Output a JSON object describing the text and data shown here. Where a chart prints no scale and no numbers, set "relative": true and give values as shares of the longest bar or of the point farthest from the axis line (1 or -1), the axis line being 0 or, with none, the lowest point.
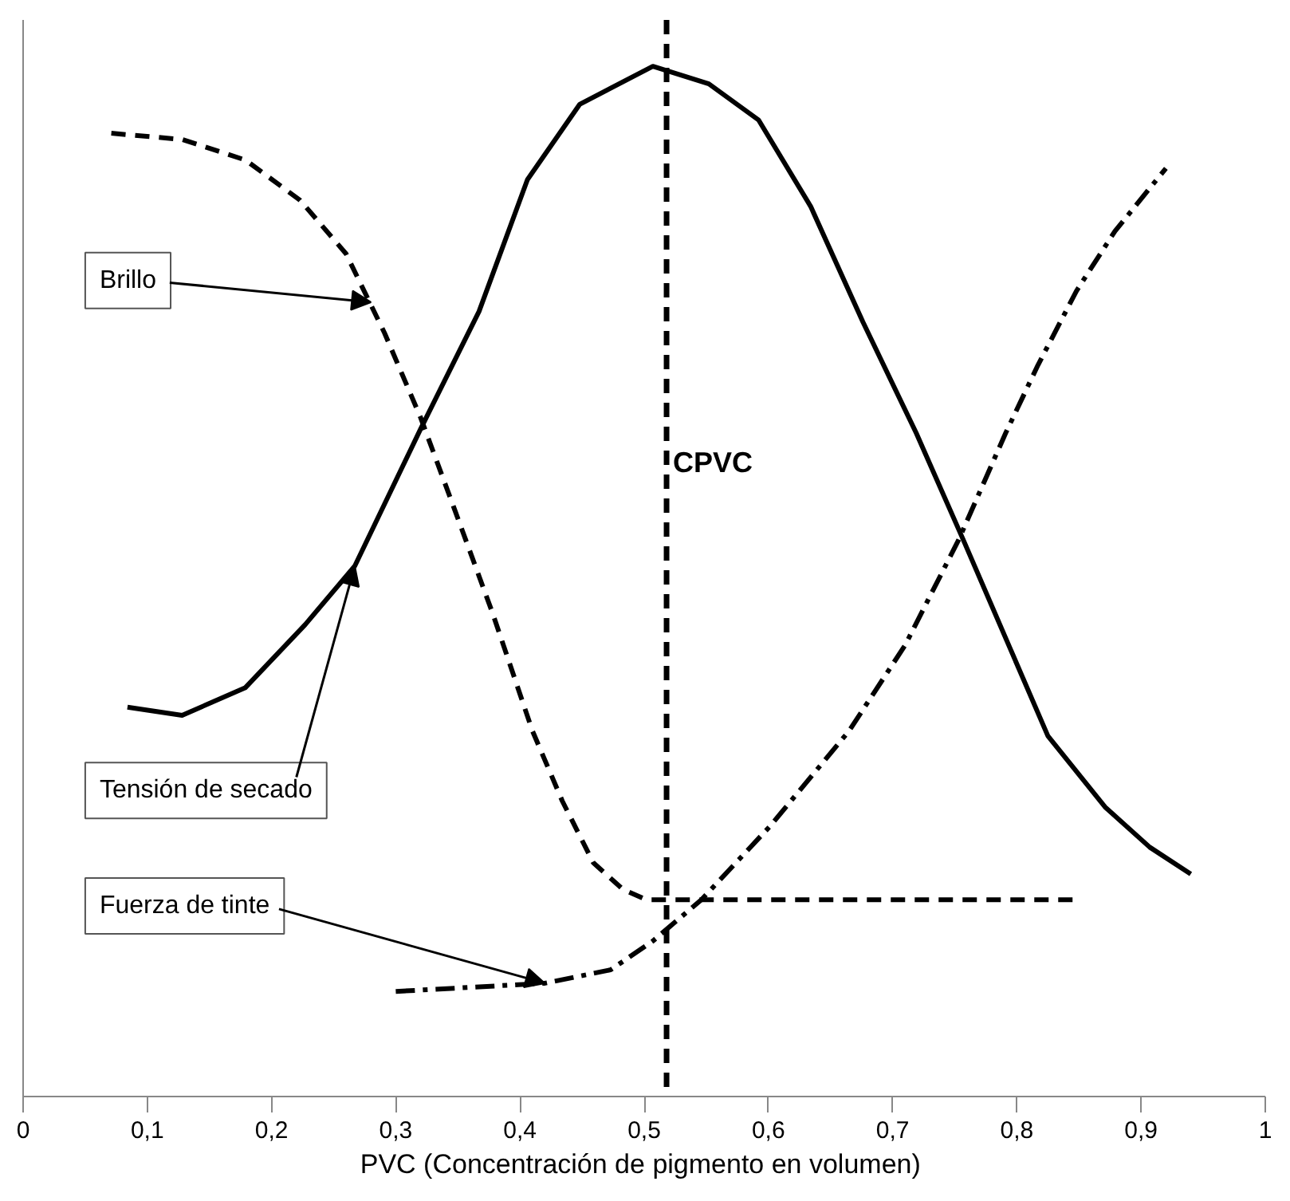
{
  "chart_data": {
    "type": "line",
    "relative": true,
    "xlabel": "PVC  (Concentración de pigmento en volumen)",
    "xlim": [
      0,
      1
    ],
    "xticks": [
      0,
      {
        "value": 0.1,
        "label": "0,1"
      },
      {
        "value": 0.2,
        "label": "0,2"
      },
      {
        "value": 0.3,
        "label": "0,3"
      },
      {
        "value": 0.4,
        "label": "0,4"
      },
      {
        "value": 0.5,
        "label": "0,5"
      },
      {
        "value": 0.6,
        "label": "0,6"
      },
      {
        "value": 0.7,
        "label": "0,7"
      },
      {
        "value": 0.8,
        "label": "0,8"
      },
      {
        "value": 0.9,
        "label": "0,9"
      },
      1
    ],
    "grid": false,
    "marker": "none",
    "series": [
      {
        "color": "#000000",
        "line_style": "solid",
        "x": [
          0.084,
          0.128,
          0.179,
          0.227,
          0.267,
          0.32,
          0.367,
          0.406,
          0.448,
          0.507,
          0.552,
          0.592,
          0.634,
          0.676,
          0.719,
          0.757,
          0.825,
          0.871,
          0.907,
          0.94
        ],
        "values": [
          0.378,
          0.37,
          0.397,
          0.458,
          0.515,
          0.648,
          0.762,
          0.89,
          0.963,
          1.0,
          0.983,
          0.948,
          0.864,
          0.752,
          0.644,
          0.54,
          0.35,
          0.281,
          0.242,
          0.216
        ]
      },
      {
        "color": "#000000",
        "line_style": "dashed",
        "x": [
          0.071,
          0.128,
          0.179,
          0.223,
          0.26,
          0.291,
          0.32,
          0.347,
          0.378,
          0.41,
          0.434,
          0.459,
          0.483,
          0.502,
          0.851
        ],
        "values": [
          0.935,
          0.929,
          0.909,
          0.87,
          0.818,
          0.741,
          0.659,
          0.571,
          0.469,
          0.355,
          0.287,
          0.227,
          0.201,
          0.191,
          0.191
        ]
      },
      {
        "color": "#000000",
        "line_style": "dashdot",
        "x": [
          0.3,
          0.42,
          0.473,
          0.507,
          0.546,
          0.601,
          0.665,
          0.71,
          0.753,
          0.791,
          0.817,
          0.848,
          0.879,
          0.92
        ],
        "values": [
          0.102,
          0.11,
          0.123,
          0.151,
          0.191,
          0.262,
          0.355,
          0.438,
          0.54,
          0.644,
          0.71,
          0.782,
          0.84,
          0.901
        ]
      }
    ],
    "ref_lines": [
      {
        "axis": "x",
        "value": 0.518,
        "label": "CPVC",
        "line_style": "dashed",
        "color": "#000000"
      }
    ],
    "annotations": [
      {
        "text": "Brillo",
        "x": 0.28,
        "y": 0.771
      },
      {
        "text": "Tensión de secado",
        "x": 0.267,
        "y": 0.515
      },
      {
        "text": "Fuerza de tinte",
        "x": 0.42,
        "y": 0.11
      }
    ]
  }
}
